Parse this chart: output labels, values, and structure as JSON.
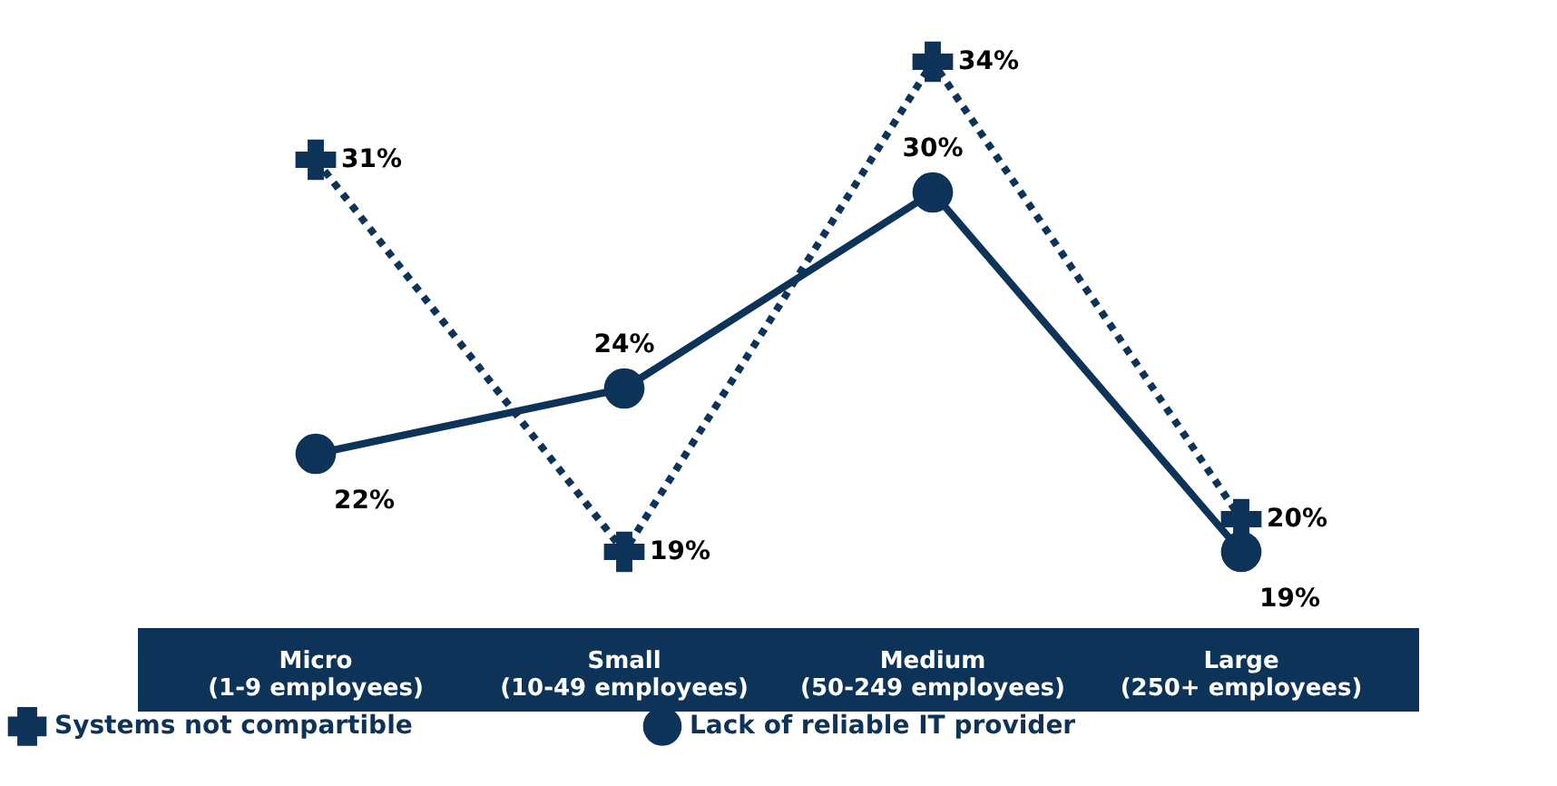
{
  "chart_data": {
    "type": "line",
    "categories": [
      "Micro\n(1-9 employees)",
      "Small\n(10-49 employees)",
      "Medium\n(50-249 employees)",
      "Large\n(250+ employees)"
    ],
    "series": [
      {
        "name": "Systems not compartible",
        "color": "#0d3358",
        "values": [
          31,
          19,
          34,
          20
        ],
        "value_labels": [
          "31%",
          "19%",
          "34%",
          "20%"
        ],
        "marker": "cross",
        "line_style": "dotted"
      },
      {
        "name": "Lack of reliable IT provider",
        "color": "#0d3358",
        "values": [
          22,
          24,
          30,
          19
        ],
        "value_labels": [
          "22%",
          "24%",
          "30%",
          "19%"
        ],
        "marker": "circle",
        "line_style": "solid"
      }
    ],
    "legend": "bottom"
  }
}
